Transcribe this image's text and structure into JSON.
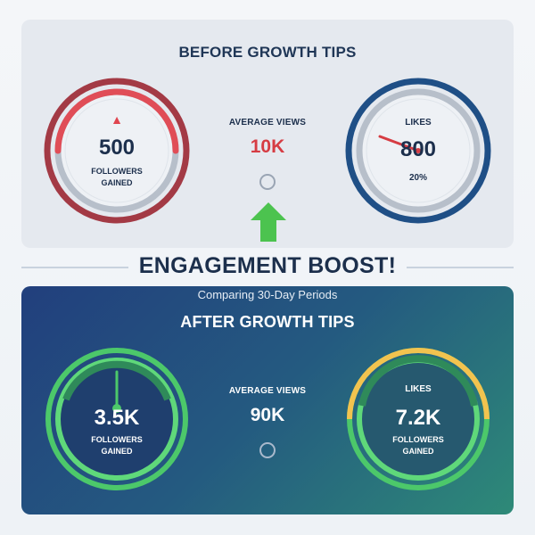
{
  "before": {
    "title": "BEFORE GROWTH TIPS",
    "followers": {
      "value": "500",
      "label_line1": "FOLLOWERS",
      "label_line2": "GAINED",
      "indicator": "up-arrow-icon",
      "level": 0.5
    },
    "views": {
      "label": "AVERAGE VIEWS",
      "value": "10K"
    },
    "likes": {
      "label": "LIKES",
      "value": "800",
      "percent": "20%"
    }
  },
  "transition_icon": "big-up-arrow-icon",
  "headline": "ENGAGEMENT BOOST!",
  "subtitle": "Comparing 30-Day Periods",
  "after": {
    "title": "AFTER GROWTH TIPS",
    "followers": {
      "value": "3.5K",
      "label_line1": "FOLLOWERS",
      "label_line2": "GAINED"
    },
    "views": {
      "label": "AVERAGE VIEWS",
      "value": "90K"
    },
    "likes": {
      "label": "LIKES",
      "value": "7.2K",
      "label_line1": "FOLLOWERS",
      "label_line2": "GAINED"
    }
  },
  "colors": {
    "before_followers_ring": "#a33a45",
    "before_followers_arc": "#e04d57",
    "before_likes_ring": "#1f4f86",
    "after_followers_ring": "#4cc86a",
    "after_likes_ring": "#f2c34f",
    "headline": "#1c2f4c",
    "value_red": "#d63c43",
    "arrow_green": "#4cc34f"
  }
}
